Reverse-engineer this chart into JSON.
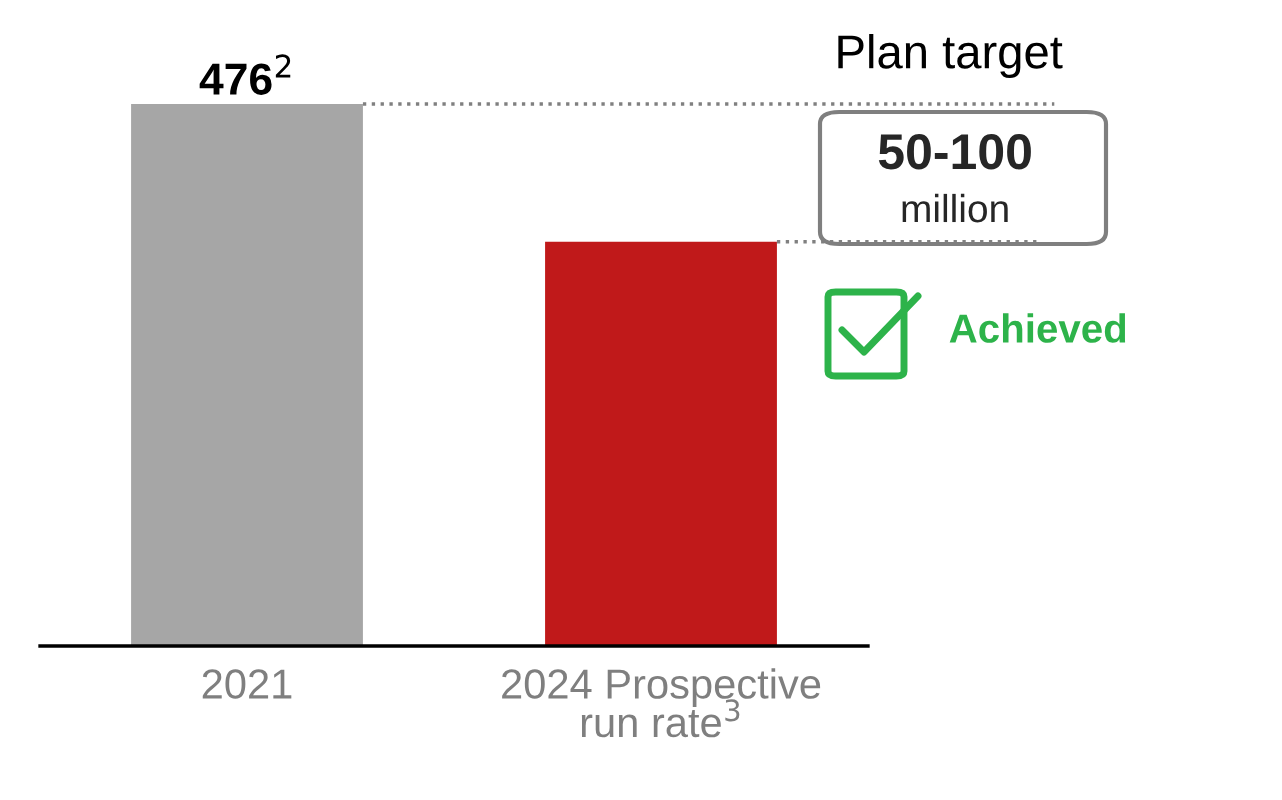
{
  "chart_data": {
    "type": "bar",
    "categories": [
      "2021",
      "2024 Prospective\nrun rate$^{3}$"
    ],
    "values": [
      476,
      355
    ],
    "colors": [
      "#a6a6a6",
      "#c0191a"
    ],
    "value_labels": [
      "476$^{2}$",
      null
    ],
    "tick_labels": "x",
    "grid": false,
    "ref_lines": [
      {
        "axis": "y",
        "value": 476,
        "line_style": "dotted",
        "color": "#808080"
      },
      {
        "axis": "y",
        "value": 355,
        "line_style": "dotted",
        "color": "#808080"
      }
    ],
    "annotations": [
      "Plan target",
      "50-100",
      "million",
      "Achieved"
    ]
  }
}
